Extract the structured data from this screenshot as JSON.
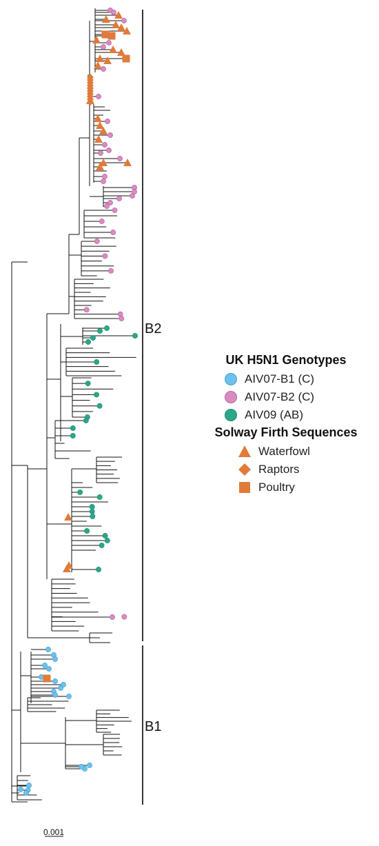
{
  "clades": [
    {
      "id": "B2",
      "label": "B2"
    },
    {
      "id": "B1",
      "label": "B1"
    }
  ],
  "scale_bar": {
    "label": "0.001"
  },
  "legend": {
    "genotypes_title": "UK H5N1 Genotypes",
    "genotypes": [
      {
        "label": "AIV07-B1 (C)",
        "color": "#6fc1ea",
        "stroke": "#3fa3d8",
        "icon": "circle-icon"
      },
      {
        "label": "AIV07-B2 (C)",
        "color": "#d88dc0",
        "stroke": "#b965a4",
        "icon": "circle-icon"
      },
      {
        "label": "AIV09 (AB)",
        "color": "#2aa889",
        "stroke": "#1c8a6d",
        "icon": "circle-icon"
      }
    ],
    "sequences_title": "Solway Firth Sequences",
    "sequences": [
      {
        "label": "Waterfowl",
        "color": "#e07b39",
        "icon": "triangle-icon"
      },
      {
        "label": "Raptors",
        "color": "#e07b39",
        "icon": "diamond-icon"
      },
      {
        "label": "Poultry",
        "color": "#e07b39",
        "icon": "square-icon"
      }
    ]
  }
}
